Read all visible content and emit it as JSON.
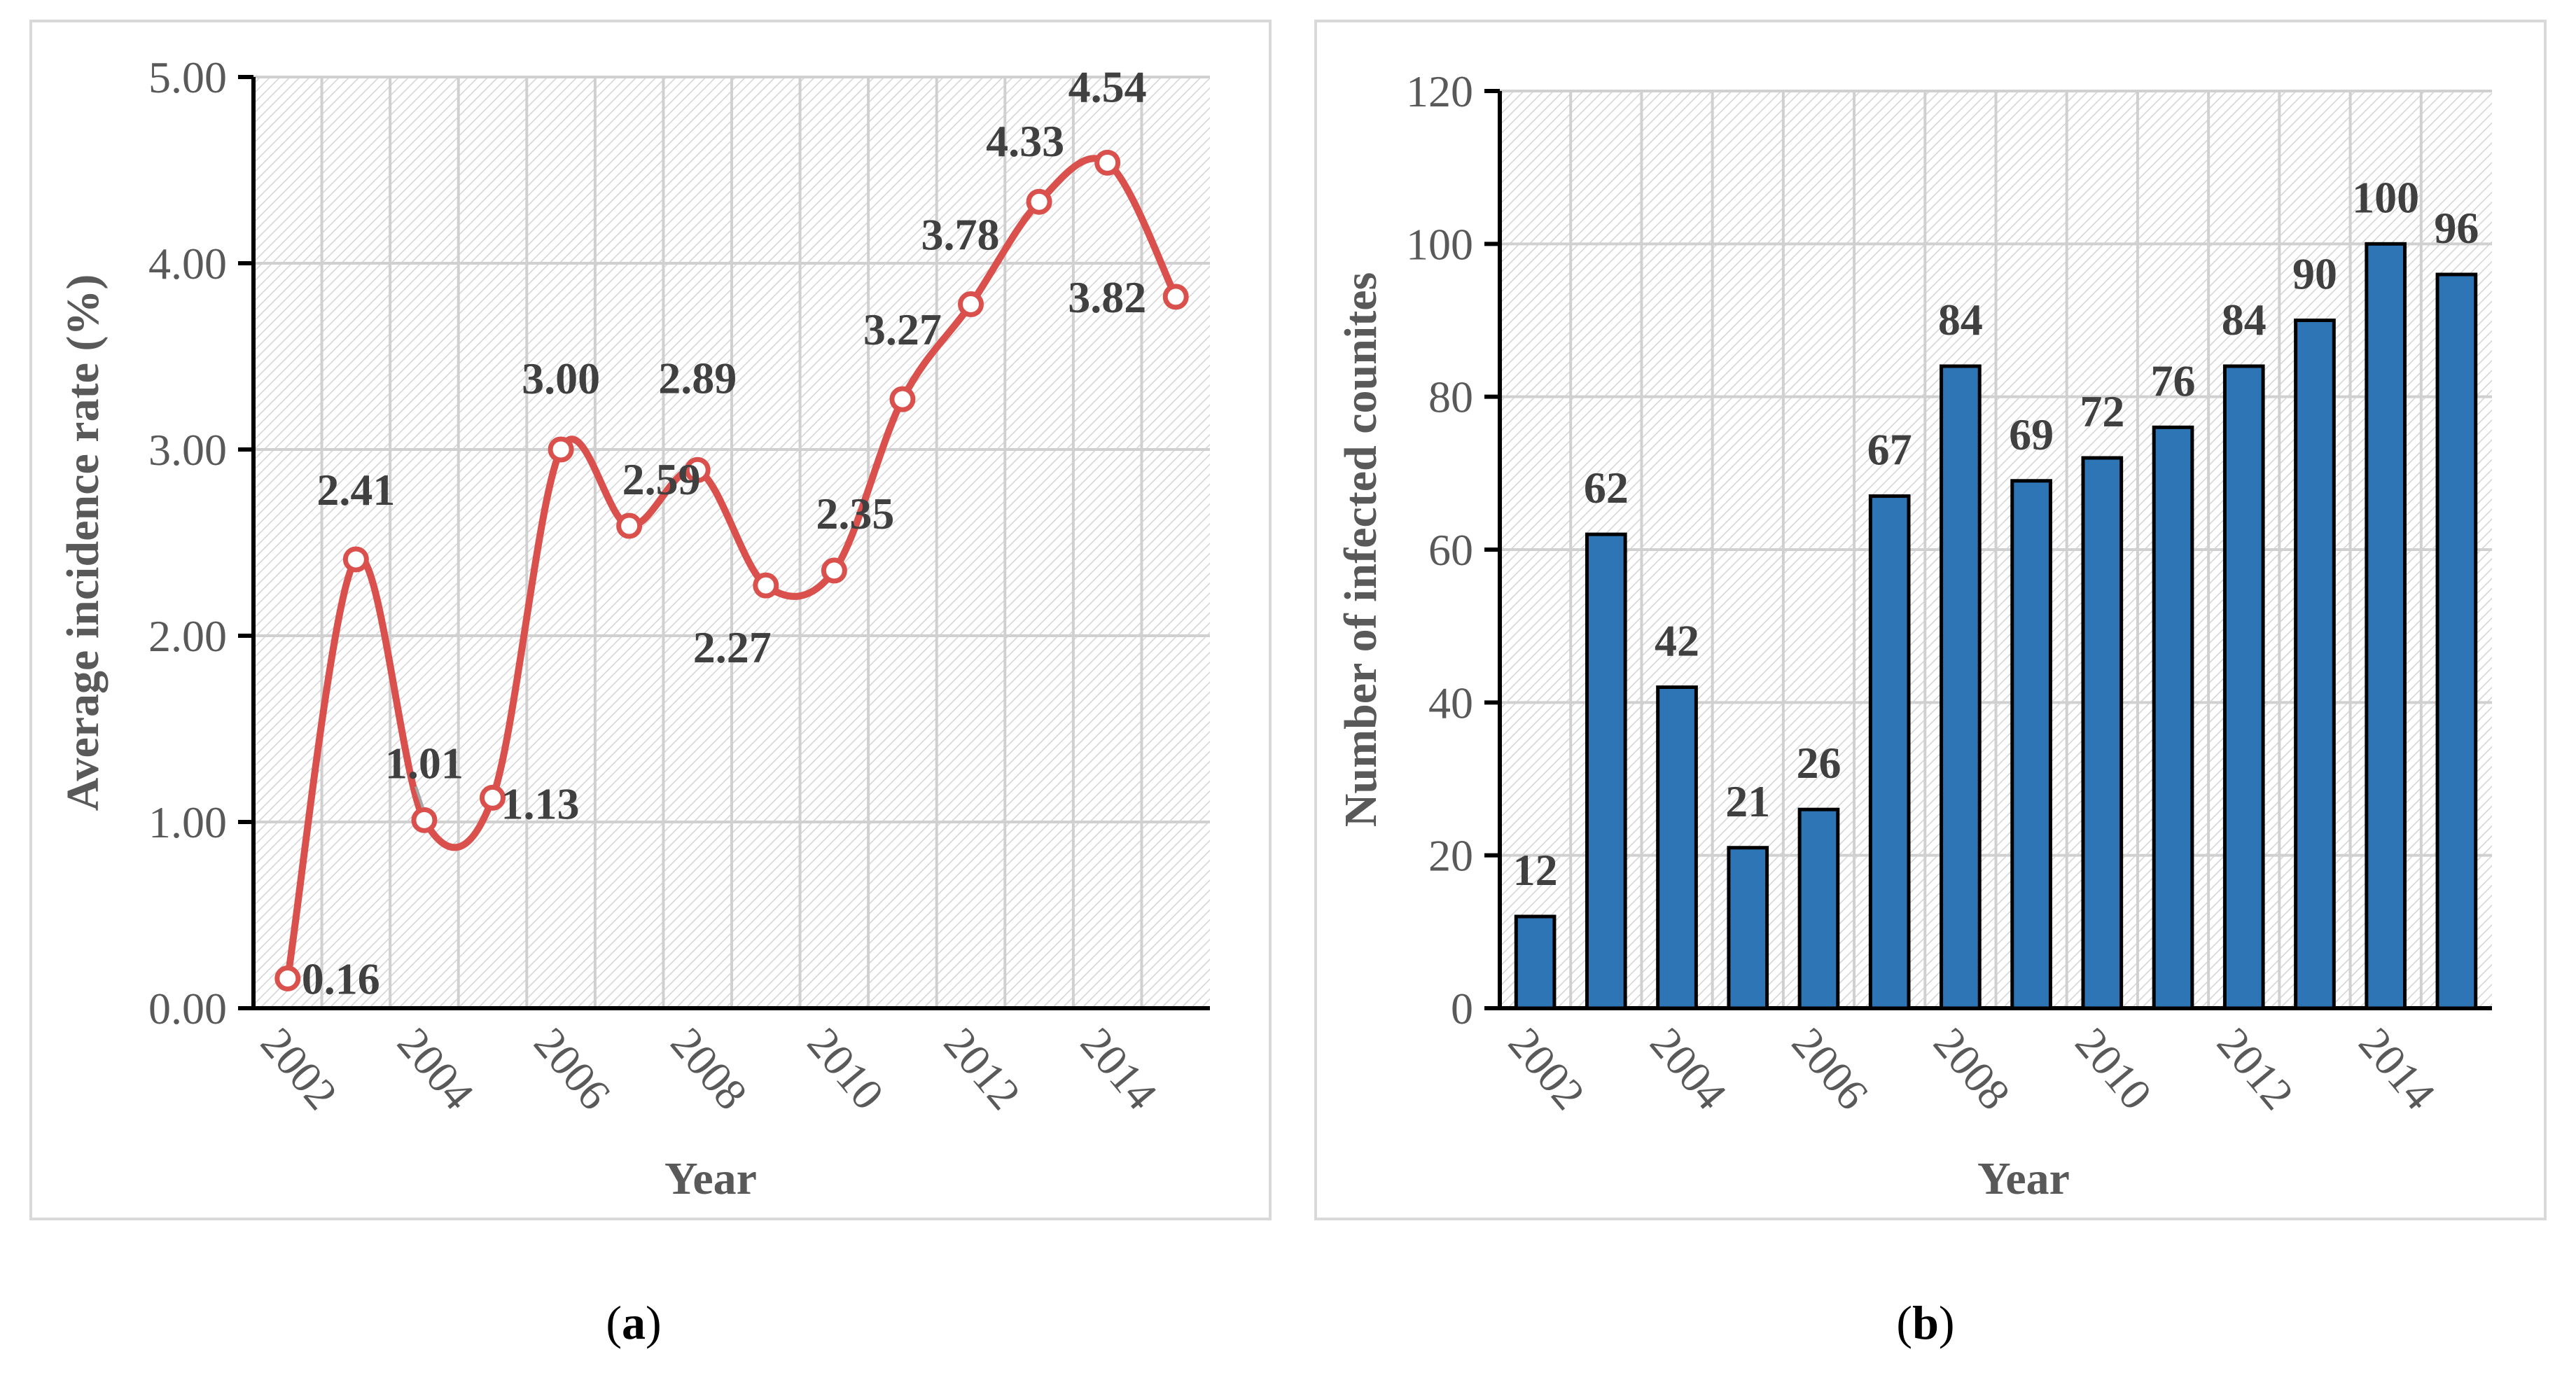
{
  "charts": [
    {
      "panel_label": "a",
      "chart_data": {
        "type": "line",
        "x": [
          2002,
          2003,
          2004,
          2005,
          2006,
          2007,
          2008,
          2009,
          2010,
          2011,
          2012,
          2013,
          2014,
          2015
        ],
        "values": [
          0.16,
          2.41,
          1.01,
          1.13,
          3.0,
          2.59,
          2.89,
          2.27,
          2.35,
          3.27,
          3.78,
          4.33,
          4.54,
          3.82
        ],
        "data_labels": [
          "0.16",
          "2.41",
          "1.01",
          "1.13",
          "3.00",
          "2.59",
          "2.89",
          "2.27",
          "2.35",
          "3.27",
          "3.78",
          "4.33",
          "4.54",
          "3.82"
        ],
        "xtick_labels": [
          "2002",
          "2004",
          "2006",
          "2008",
          "2010",
          "2012",
          "2014"
        ],
        "ytick_labels": [
          "0.00",
          "1.00",
          "2.00",
          "3.00",
          "4.00",
          "5.00"
        ],
        "ylim": [
          0,
          5
        ],
        "xlabel": "Year",
        "ylabel": "Average incidence rate (%)",
        "series_color": "#d9504c",
        "grid": true
      }
    },
    {
      "panel_label": "b",
      "chart_data": {
        "type": "bar",
        "x": [
          2002,
          2003,
          2004,
          2005,
          2006,
          2007,
          2008,
          2009,
          2010,
          2011,
          2012,
          2013,
          2014,
          2015
        ],
        "values": [
          12,
          62,
          42,
          21,
          26,
          67,
          84,
          69,
          72,
          76,
          84,
          90,
          100,
          96
        ],
        "data_labels": [
          "12",
          "62",
          "42",
          "21",
          "26",
          "67",
          "84",
          "69",
          "72",
          "76",
          "84",
          "90",
          "100",
          "96"
        ],
        "xtick_labels": [
          "2002",
          "2004",
          "2006",
          "2008",
          "2010",
          "2012",
          "2014"
        ],
        "ytick_labels": [
          "0",
          "20",
          "40",
          "60",
          "80",
          "100",
          "120"
        ],
        "ylim": [
          0,
          120
        ],
        "xlabel": "Year",
        "ylabel": "Number of infected counites",
        "series_color": "#2e75b6",
        "grid": true
      }
    }
  ]
}
